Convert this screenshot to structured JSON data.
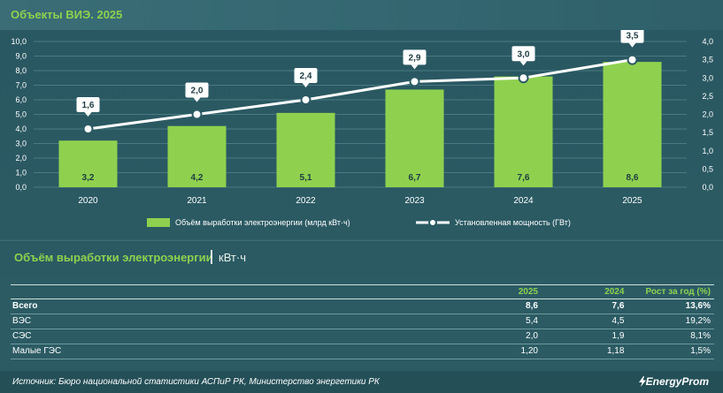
{
  "header": {
    "title": "Объекты ВИЭ. 2025"
  },
  "chart_data": {
    "type": "bar",
    "categories": [
      "2020",
      "2021",
      "2022",
      "2023",
      "2024",
      "2025"
    ],
    "series": [
      {
        "name": "Объём выработки электроэнергии (млрд кВт·ч)",
        "type": "bar",
        "axis": "left",
        "values": [
          3.2,
          4.2,
          5.1,
          6.7,
          7.6,
          8.6
        ],
        "labels": [
          "3,2",
          "4,2",
          "5,1",
          "6,7",
          "7,6",
          "8,6"
        ]
      },
      {
        "name": "Установленная мощность (ГВт)",
        "type": "line",
        "axis": "right",
        "values": [
          1.6,
          2.0,
          2.4,
          2.9,
          3.0,
          3.5
        ],
        "labels": [
          "1,6",
          "2,0",
          "2,4",
          "2,9",
          "3,0",
          "3,5"
        ]
      }
    ],
    "y_left": {
      "min": 0,
      "max": 10,
      "ticks": [
        "0,0",
        "1,0",
        "2,0",
        "3,0",
        "4,0",
        "5,0",
        "6,0",
        "7,0",
        "8,0",
        "9,0",
        "10,0"
      ]
    },
    "y_right": {
      "min": 0,
      "max": 4,
      "ticks": [
        "0,0",
        "0,5",
        "1,0",
        "1,5",
        "2,0",
        "2,5",
        "3,0",
        "3,5",
        "4,0"
      ]
    },
    "legend_position": "bottom",
    "grid": true,
    "colors": {
      "bar": "#8fd14f",
      "line": "#ffffff",
      "grid": "#4a7a82",
      "label_bg": "#ffffff",
      "label_text": "#1e3b42"
    }
  },
  "section": {
    "title": "Объём выработки электроэнергии",
    "unit": "кВт·ч"
  },
  "table": {
    "headers": [
      "",
      "2025",
      "2024",
      "Рост за год (%)"
    ],
    "rows": [
      {
        "label": "Всего",
        "v2025": "8,6",
        "v2024": "7,6",
        "growth": "13,6%"
      },
      {
        "label": "ВЭС",
        "v2025": "5,4",
        "v2024": "4,5",
        "growth": "19,2%"
      },
      {
        "label": "СЭС",
        "v2025": "2,0",
        "v2024": "1,9",
        "growth": "8,1%"
      },
      {
        "label": "Малые ГЭС",
        "v2025": "1,20",
        "v2024": "1,18",
        "growth": "1,5%"
      }
    ]
  },
  "footer": {
    "source": "Источник: Бюро национальной статистики АСПиР РК, Министерство энергетики РК",
    "brand": "EnergyProm",
    "brand_icon": "lightning-icon"
  }
}
